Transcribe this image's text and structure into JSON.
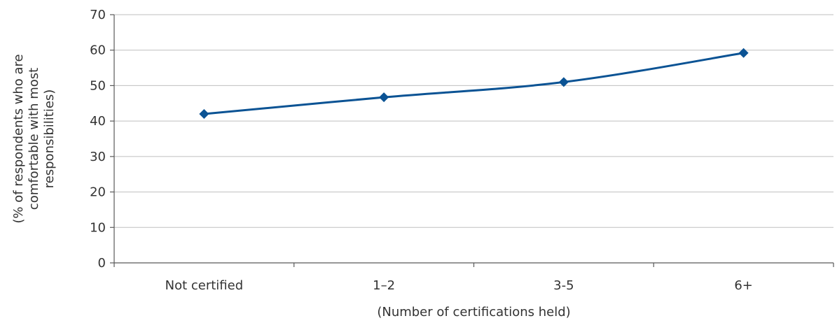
{
  "chart_data": {
    "type": "line",
    "categories": [
      "Not certified",
      "1–2",
      "3-5",
      "6+"
    ],
    "series": [
      {
        "values": [
          42,
          46.7,
          51,
          59.2
        ],
        "color": "#0b5394"
      }
    ],
    "xlabel": "(Number of certifications held)",
    "ylabel_lines": [
      "(% of respondents who are",
      "comfortable with most",
      "responsibilities)"
    ],
    "ylim": [
      0,
      70
    ],
    "yticks": [
      "0",
      "10",
      "20",
      "30",
      "40",
      "50",
      "60",
      "70"
    ],
    "grid": true,
    "marker": "diamond",
    "smooth": true
  }
}
